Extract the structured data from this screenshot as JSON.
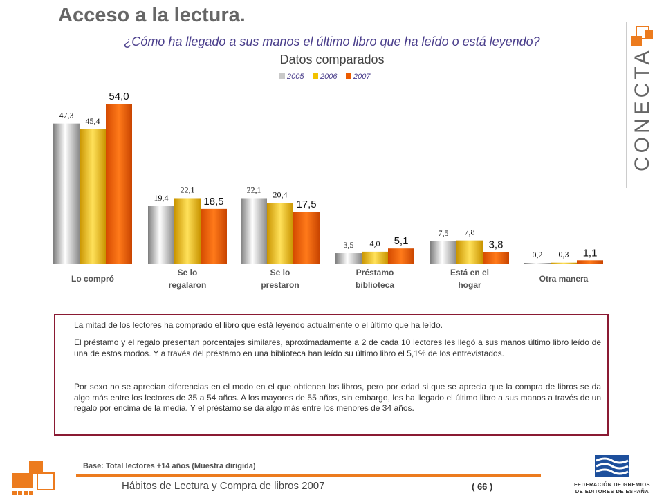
{
  "header": {
    "title": "Acceso a la lectura.",
    "subtitle": "¿Cómo ha llegado a sus manos el último libro que ha leído o está leyendo?",
    "subtitle2": "Datos comparados"
  },
  "brand": {
    "logo_text": "CONECTA"
  },
  "chart_data": {
    "type": "bar",
    "categories": [
      [
        "Lo compró"
      ],
      [
        "Se lo",
        "regalaron"
      ],
      [
        "Se lo",
        "prestaron"
      ],
      [
        "Préstamo",
        "biblioteca"
      ],
      [
        "Está en el",
        "hogar"
      ],
      [
        "Otra manera"
      ]
    ],
    "series": [
      {
        "name": "2005",
        "values": [
          47.3,
          19.4,
          22.1,
          3.5,
          7.5,
          0.2
        ],
        "labels": [
          "47,3",
          "19,4",
          "22,1",
          "3,5",
          "7,5",
          "0,2"
        ],
        "color": "#c9c9c9"
      },
      {
        "name": "2006",
        "values": [
          45.4,
          22.1,
          20.4,
          4.0,
          7.8,
          0.3
        ],
        "labels": [
          "45,4",
          "22,1",
          "20,4",
          "4,0",
          "7,8",
          "0,3"
        ],
        "color": "#f2c200"
      },
      {
        "name": "2007",
        "values": [
          54.0,
          18.5,
          17.5,
          5.1,
          3.8,
          1.1
        ],
        "labels": [
          "54,0",
          "18,5",
          "17,5",
          "5,1",
          "3,8",
          "1,1"
        ],
        "color": "#ec5b00"
      }
    ],
    "ylim": [
      0,
      54
    ],
    "legend_position": "top-center",
    "grid": false
  },
  "summary": {
    "paragraphs": [
      "La mitad de los lectores ha comprado el libro que está leyendo actualmente o el último que ha leído.",
      "El préstamo y el regalo presentan porcentajes similares, aproximadamente a 2 de cada 10 lectores les llegó a sus manos último libro leído de una de estos modos. Y a través del préstamo en una biblioteca han leído su último libro el 5,1% de los entrevistados.",
      "Por sexo no se aprecian diferencias en el modo en el que obtienen los libros, pero por edad si que se aprecia que la compra de libros se da algo más entre los lectores de 35 a 54 años. A los mayores de 55 años, sin embargo, les ha llegado el último libro a sus manos a través de un regalo por encima de la media. Y el préstamo se da algo más entre los menores de 34 años."
    ]
  },
  "footer": {
    "base": "Base: Total lectores +14 años (Muestra dirigida)",
    "title": "Hábitos de Lectura y Compra de libros 2007",
    "page": "( 66 )",
    "fed_line1": "FEDERACIÓN DE GREMIOS",
    "fed_line2": "DE EDITORES DE ESPAÑA"
  }
}
